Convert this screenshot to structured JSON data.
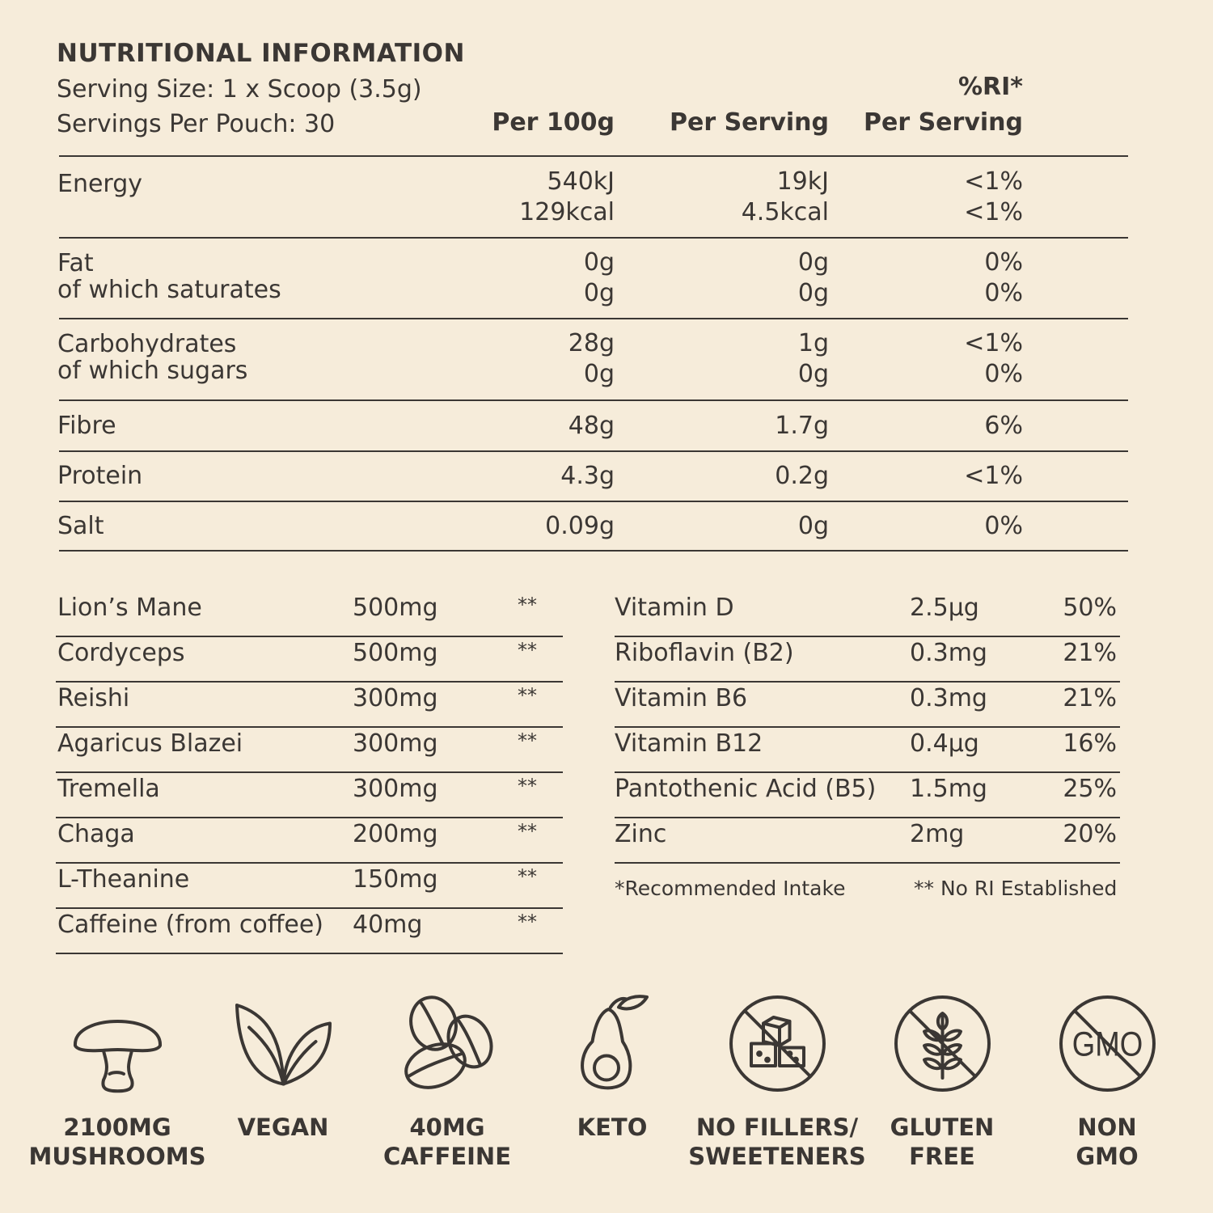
{
  "header": {
    "title": "NUTRITIONAL INFORMATION",
    "serving_size": "Serving Size: 1 x Scoop (3.5g)",
    "servings_per_pouch": "Servings Per Pouch: 30",
    "col_per100": "Per 100g",
    "col_per_serving": "Per Serving",
    "col_ri_top": "%RI*",
    "col_ri": "Per Serving"
  },
  "nutrition": [
    {
      "label": "Energy",
      "per100": "540kJ\n129kcal",
      "serving": "19kJ\n4.5kcal",
      "ri": "<1%\n<1%"
    },
    {
      "label": "Fat\nof which saturates",
      "per100": "0g\n0g",
      "serving": "0g\n0g",
      "ri": "0%\n0%"
    },
    {
      "label": "Carbohydrates\nof which sugars",
      "per100": "28g\n0g",
      "serving": "1g\n0g",
      "ri": "<1%\n0%"
    },
    {
      "label": "Fibre",
      "per100": "48g",
      "serving": "1.7g",
      "ri": "6%"
    },
    {
      "label": "Protein",
      "per100": "4.3g",
      "serving": "0.2g",
      "ri": "<1%"
    },
    {
      "label": "Salt",
      "per100": "0.09g",
      "serving": "0g",
      "ri": "0%"
    }
  ],
  "ingredients": [
    {
      "name": "Lion’s Mane",
      "amount": "500mg",
      "ri": "**"
    },
    {
      "name": "Cordyceps",
      "amount": "500mg",
      "ri": "**"
    },
    {
      "name": "Reishi",
      "amount": "300mg",
      "ri": "**"
    },
    {
      "name": "Agaricus Blazei",
      "amount": "300mg",
      "ri": "**"
    },
    {
      "name": "Tremella",
      "amount": "300mg",
      "ri": "**"
    },
    {
      "name": "Chaga",
      "amount": "200mg",
      "ri": "**"
    },
    {
      "name": "L-Theanine",
      "amount": "150mg",
      "ri": "**"
    },
    {
      "name": "Caffeine (from coffee)",
      "amount": "40mg",
      "ri": "**"
    }
  ],
  "vitamins": [
    {
      "name": "Vitamin D",
      "amount": "2.5µg",
      "ri": "50%"
    },
    {
      "name": "Riboflavin (B2)",
      "amount": "0.3mg",
      "ri": "21%"
    },
    {
      "name": "Vitamin B6",
      "amount": "0.3mg",
      "ri": "21%"
    },
    {
      "name": "Vitamin B12",
      "amount": "0.4µg",
      "ri": "16%"
    },
    {
      "name": "Pantothenic Acid (B5)",
      "amount": "1.5mg",
      "ri": "25%"
    },
    {
      "name": "Zinc",
      "amount": "2mg",
      "ri": "20%"
    }
  ],
  "footnotes": {
    "recommended": "*Recommended Intake",
    "no_ri": "** No RI Established"
  },
  "badges": [
    {
      "label": "2100MG\nMUSHROOMS",
      "icon": "mushroom-icon"
    },
    {
      "label": "VEGAN",
      "icon": "leaves-icon"
    },
    {
      "label": "40MG\nCAFFEINE",
      "icon": "coffee-beans-icon"
    },
    {
      "label": "KETO",
      "icon": "avocado-icon"
    },
    {
      "label": "NO FILLERS/\nSWEETENERS",
      "icon": "no-sugar-cubes-icon",
      "GMO_text": ""
    },
    {
      "label": "GLUTEN\nFREE",
      "icon": "no-wheat-icon"
    },
    {
      "label": "NON\nGMO",
      "icon": "no-gmo-icon",
      "icon_text": "GMO"
    }
  ],
  "colors": {
    "background": "#f6ecda",
    "ink": "#3b3734"
  }
}
